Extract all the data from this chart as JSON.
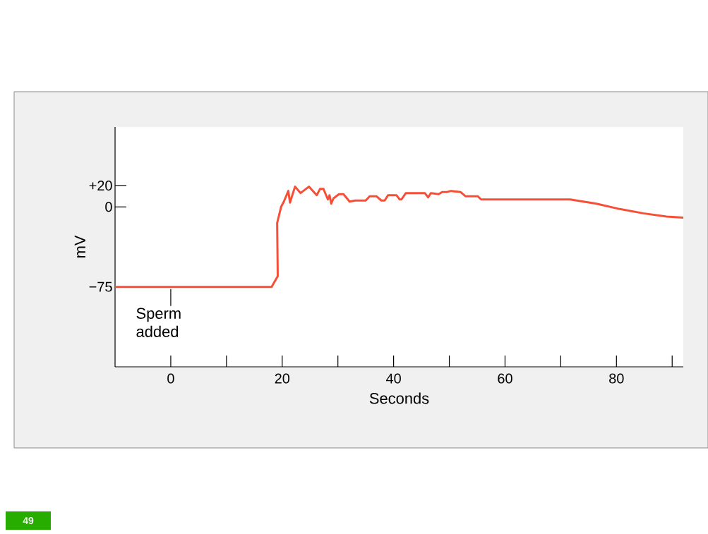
{
  "chart_data": {
    "type": "line",
    "xlabel": "Seconds",
    "ylabel": "mV",
    "x": [
      -10,
      18.1,
      19.2,
      19.1,
      19.8,
      20.3,
      21.1,
      21.4,
      22.3,
      23.3,
      24.8,
      26.2,
      26.8,
      27.4,
      28.2,
      28.5,
      28.8,
      29.2,
      30.2,
      31,
      32.1,
      33.1,
      35,
      35.7,
      36.9,
      37.8,
      38.4,
      39,
      40.5,
      41.1,
      41.4,
      42.2,
      45.6,
      46.2,
      46.7,
      48.1,
      48.7,
      49.6,
      50.3,
      52,
      52.9,
      55.1,
      55.7,
      71.7,
      76.4,
      80.6,
      84.8,
      89,
      92
    ],
    "values": [
      -75,
      -75,
      -65,
      -15,
      0,
      5,
      15,
      4,
      19,
      13,
      19,
      11,
      17,
      17,
      7,
      11,
      3,
      8,
      12,
      12,
      5,
      6,
      6,
      10,
      10,
      6,
      6,
      11,
      11,
      7,
      7,
      13,
      13,
      9,
      13,
      12,
      14,
      14,
      15,
      14,
      10,
      10,
      7,
      7,
      3,
      -2,
      -6,
      -9,
      -10
    ],
    "color": "#f74f37",
    "xlim": [
      -10,
      92
    ],
    "ylim": [
      -150,
      75
    ],
    "xticks": [
      0,
      {
        "value": 10,
        "label": null
      },
      20,
      {
        "value": 30,
        "label": null
      },
      40,
      {
        "value": 50,
        "label": null
      },
      60,
      {
        "value": 70,
        "label": null
      },
      80,
      {
        "value": 90,
        "label": null
      }
    ],
    "yticks": [
      {
        "value": -75,
        "label": "−75"
      },
      0,
      {
        "value": 20,
        "label": "+20"
      }
    ],
    "grid": false,
    "marker": "none",
    "line_style": "solid",
    "annotations": [
      {
        "text": "Sperm added",
        "x": 0,
        "y": -75
      },
      "49"
    ]
  }
}
